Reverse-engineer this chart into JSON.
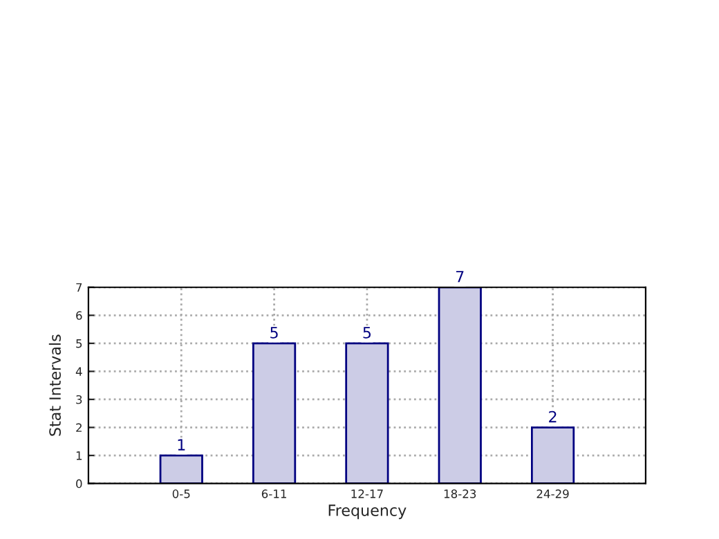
{
  "chart_data": {
    "type": "bar",
    "xlabel": "Frequency",
    "ylabel": "Stat Intervals",
    "categories": [
      "0-5",
      "6-11",
      "12-17",
      "18-23",
      "24-29"
    ],
    "values": [
      1,
      5,
      5,
      7,
      2
    ],
    "color": "#ccccE6",
    "ylim": [
      0,
      7
    ],
    "yticks": [
      0,
      1,
      2,
      3,
      4,
      5,
      6,
      7
    ],
    "grid": true,
    "line_style": "dotted",
    "data_labels": true
  }
}
